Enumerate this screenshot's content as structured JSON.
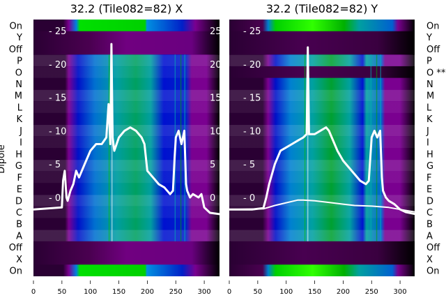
{
  "chart_data": {
    "type": "heatmap",
    "ylabel": "Dipole",
    "row_labels": [
      "On",
      "Y",
      "Off",
      "P",
      "O",
      "N",
      "M",
      "L",
      "K",
      "J",
      "I",
      "H",
      "G",
      "F",
      "E",
      "D",
      "C",
      "B",
      "A",
      "Off",
      "X",
      "On"
    ],
    "x_ticks": [
      0,
      50,
      100,
      150,
      200,
      250,
      300
    ],
    "xlim": [
      0,
      327
    ],
    "inner_y_ticks": [
      0,
      5,
      10,
      15,
      20,
      25
    ],
    "inner_ylim": [
      -11.8,
      26.7
    ],
    "panels": [
      {
        "title": "32.2 (Tile082=82) X",
        "row_labels": [
          "On",
          "Y",
          "Off",
          "P",
          "O",
          "N",
          "M",
          "L",
          "K",
          "J",
          "I",
          "H",
          "G",
          "F",
          "E",
          "D",
          "C",
          "B",
          "A",
          "Off",
          "X",
          "On"
        ],
        "dark_rows": [
          "Y",
          "Off",
          "Off"
        ],
        "series": [
          {
            "name": "trace",
            "x": [
              0,
              50,
              52,
              55,
              58,
              60,
              65,
              70,
              75,
              80,
              90,
              100,
              110,
              120,
              128,
              132,
              135,
              137,
              139,
              142,
              150,
              160,
              170,
              180,
              190,
              195,
              200,
              210,
              220,
              230,
              240,
              245,
              248,
              250,
              255,
              260,
              265,
              268,
              270,
              275,
              280,
              290,
              295,
              300,
              310,
              327
            ],
            "y": [
              -1.8,
              -1.5,
              2.5,
              4,
              0,
              -0.5,
              1,
              2,
              4,
              3,
              5,
              7,
              8,
              8,
              9,
              14,
              8,
              23,
              9,
              7,
              9,
              10,
              10.5,
              10,
              9,
              8,
              4,
              3,
              2,
              1.5,
              0.5,
              1,
              6,
              9,
              10,
              8,
              10,
              2,
              1,
              0,
              0.5,
              0,
              0.5,
              -1.5,
              -2.3,
              -2.5
            ]
          }
        ]
      },
      {
        "title": "32.2 (Tile082=82) Y",
        "row_labels": [
          "On",
          "Y",
          "Off",
          "P",
          "O **",
          "N",
          "M",
          "L",
          "K",
          "J",
          "I",
          "H",
          "G",
          "F",
          "E",
          "D",
          "C",
          "B",
          "A",
          "Off",
          "X",
          "On"
        ],
        "dark_rows": [
          "Y",
          "Off",
          "O **",
          "Off",
          "X"
        ],
        "series": [
          {
            "name": "trace-main",
            "x": [
              0,
              40,
              60,
              65,
              70,
              80,
              90,
              100,
              110,
              120,
              130,
              136,
              138,
              140,
              150,
              160,
              170,
              175,
              180,
              190,
              200,
              210,
              220,
              230,
              240,
              245,
              250,
              255,
              260,
              265,
              268,
              270,
              275,
              280,
              290,
              300,
              310,
              327
            ],
            "y": [
              -1.8,
              -1.8,
              -1.6,
              0,
              2,
              5,
              7,
              7.5,
              8,
              8.5,
              9,
              9.5,
              22.5,
              9.5,
              9.5,
              10,
              10.5,
              10,
              9,
              7,
              5.5,
              4.5,
              3.5,
              2.5,
              2,
              2.5,
              9,
              10,
              9,
              10,
              3,
              1,
              0,
              -0.5,
              -1,
              -1.8,
              -2.2,
              -2.5
            ]
          },
          {
            "name": "trace-low",
            "x": [
              0,
              60,
              80,
              100,
              120,
              130,
              150,
              180,
              200,
              220,
              250,
              280,
              300,
              327
            ],
            "y": [
              -1.8,
              -1.7,
              -1.2,
              -0.8,
              -0.4,
              -0.4,
              -0.5,
              -0.8,
              -1,
              -1.2,
              -1.3,
              -1.5,
              -1.8,
              -2.2
            ]
          }
        ]
      }
    ]
  }
}
